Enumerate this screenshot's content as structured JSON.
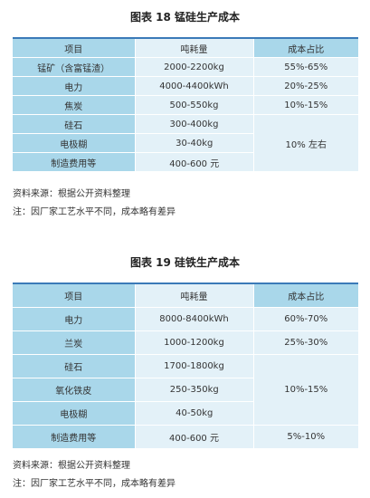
{
  "figure1": {
    "title": "图表 18   锰硅生产成本",
    "headers": [
      "项目",
      "吨耗量",
      "成本占比"
    ],
    "rows": [
      [
        "锰矿（含富锰渣）",
        "2000-2200kg",
        "55%-65%"
      ],
      [
        "电力",
        "4000-4400kWh",
        "20%-25%"
      ],
      [
        "焦炭",
        "500-550kg",
        "10%-15%"
      ],
      [
        "硅石",
        "300-400kg"
      ],
      [
        "电极糊",
        "30-40kg"
      ],
      [
        "制造费用等",
        "400-600 元"
      ]
    ],
    "merged_share": "10% 左右",
    "source": "资料来源：根据公开资料整理",
    "note": "注：因厂家工艺水平不同，成本略有差异"
  },
  "figure2": {
    "title": "图表 19   硅铁生产成本",
    "headers": [
      "项目",
      "吨耗量",
      "成本占比"
    ],
    "rows": [
      [
        "电力",
        "8000-8400kWh",
        "60%-70%"
      ],
      [
        "兰炭",
        "1000-1200kg",
        "25%-30%"
      ],
      [
        "硅石",
        "1700-1800kg"
      ],
      [
        "氧化铁皮",
        "250-350kg"
      ],
      [
        "电极糊",
        "40-50kg"
      ],
      [
        "制造费用等",
        "400-600 元",
        "5%-10%"
      ]
    ],
    "merged_share": "10%-15%",
    "source": "资料来源：根据公开资料整理",
    "note": "注：因厂家工艺水平不同，成本略有差异"
  },
  "colors": {
    "header_rule": "#3b7ab8",
    "cell_dark": "#a9d7ea",
    "cell_light": "#e3f1f8"
  }
}
